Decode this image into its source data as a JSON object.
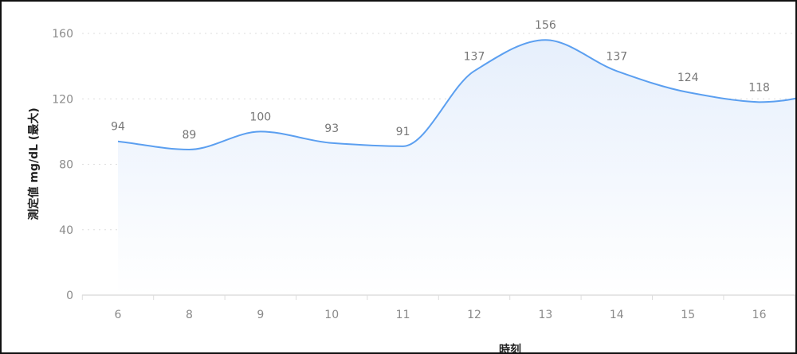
{
  "chart_data": {
    "type": "area",
    "title": "",
    "xlabel": "時刻",
    "ylabel": "測定値 mg/dL (最大)",
    "categories": [
      "6",
      "8",
      "9",
      "10",
      "11",
      "12",
      "13",
      "14",
      "15",
      "16"
    ],
    "series": [
      {
        "values": [
          94,
          89,
          100,
          93,
          91,
          137,
          156,
          137,
          124,
          118
        ]
      }
    ],
    "yticks": [
      "0",
      "40",
      "80",
      "120",
      "160"
    ],
    "ylim": [
      0,
      160
    ],
    "grid": "horizontal dotted",
    "smooth": true,
    "data_labels": true,
    "colors": {
      "line": "#5b9ff0",
      "fill_top": "#e6effc",
      "fill_bottom": "#ffffff",
      "grid": "#dddddd",
      "axis": "#dddddd"
    }
  }
}
